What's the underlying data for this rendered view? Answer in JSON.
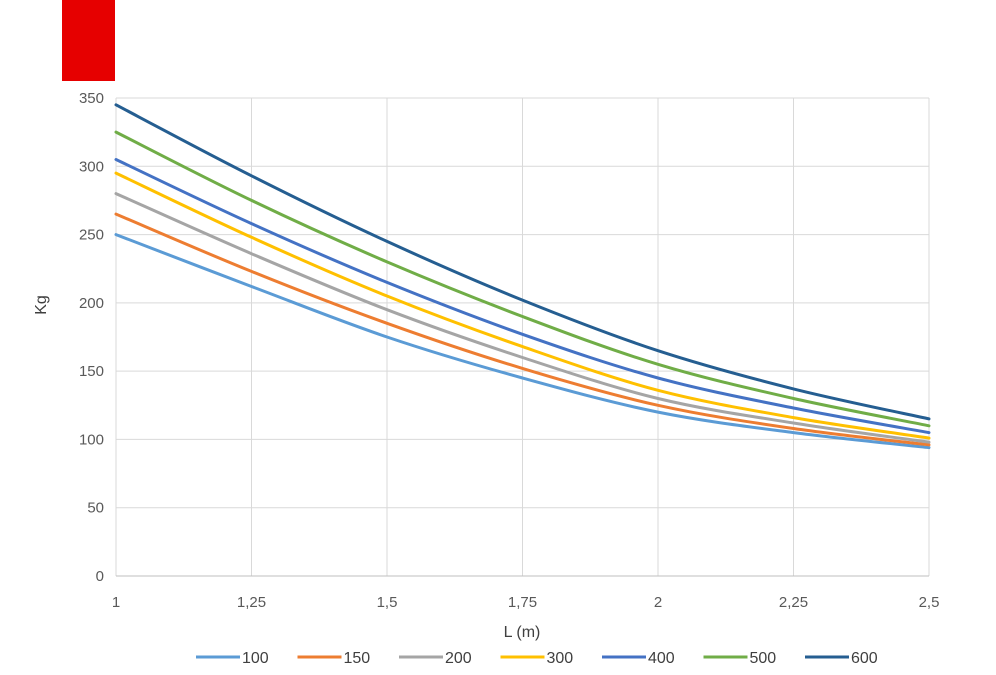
{
  "brand": {
    "color": "#e60000"
  },
  "chart_data": {
    "type": "line",
    "title": "",
    "xlabel": "L (m)",
    "ylabel": "Kg",
    "x": [
      1,
      1.25,
      1.5,
      1.75,
      2,
      2.25,
      2.5
    ],
    "x_tick_labels": [
      "1",
      "1,25",
      "1,5",
      "1,75",
      "2",
      "2,25",
      "2,5"
    ],
    "ylim": [
      0,
      350
    ],
    "y_ticks": [
      0,
      50,
      100,
      150,
      200,
      250,
      300,
      350
    ],
    "grid": true,
    "legend_position": "bottom",
    "series": [
      {
        "name": "100",
        "color": "#5b9bd5",
        "values": [
          250,
          212,
          175,
          145,
          120,
          105,
          94
        ]
      },
      {
        "name": "150",
        "color": "#ed7d31",
        "values": [
          265,
          223,
          185,
          152,
          125,
          108,
          96
        ]
      },
      {
        "name": "200",
        "color": "#a5a5a5",
        "values": [
          280,
          236,
          195,
          160,
          130,
          112,
          98
        ]
      },
      {
        "name": "300",
        "color": "#ffc000",
        "values": [
          295,
          248,
          205,
          168,
          136,
          116,
          101
        ]
      },
      {
        "name": "400",
        "color": "#4472c4",
        "values": [
          305,
          258,
          215,
          177,
          145,
          123,
          105
        ]
      },
      {
        "name": "500",
        "color": "#70ad47",
        "values": [
          325,
          275,
          230,
          190,
          155,
          130,
          110
        ]
      },
      {
        "name": "600",
        "color": "#255e91",
        "values": [
          345,
          293,
          245,
          202,
          165,
          137,
          115
        ]
      }
    ]
  }
}
